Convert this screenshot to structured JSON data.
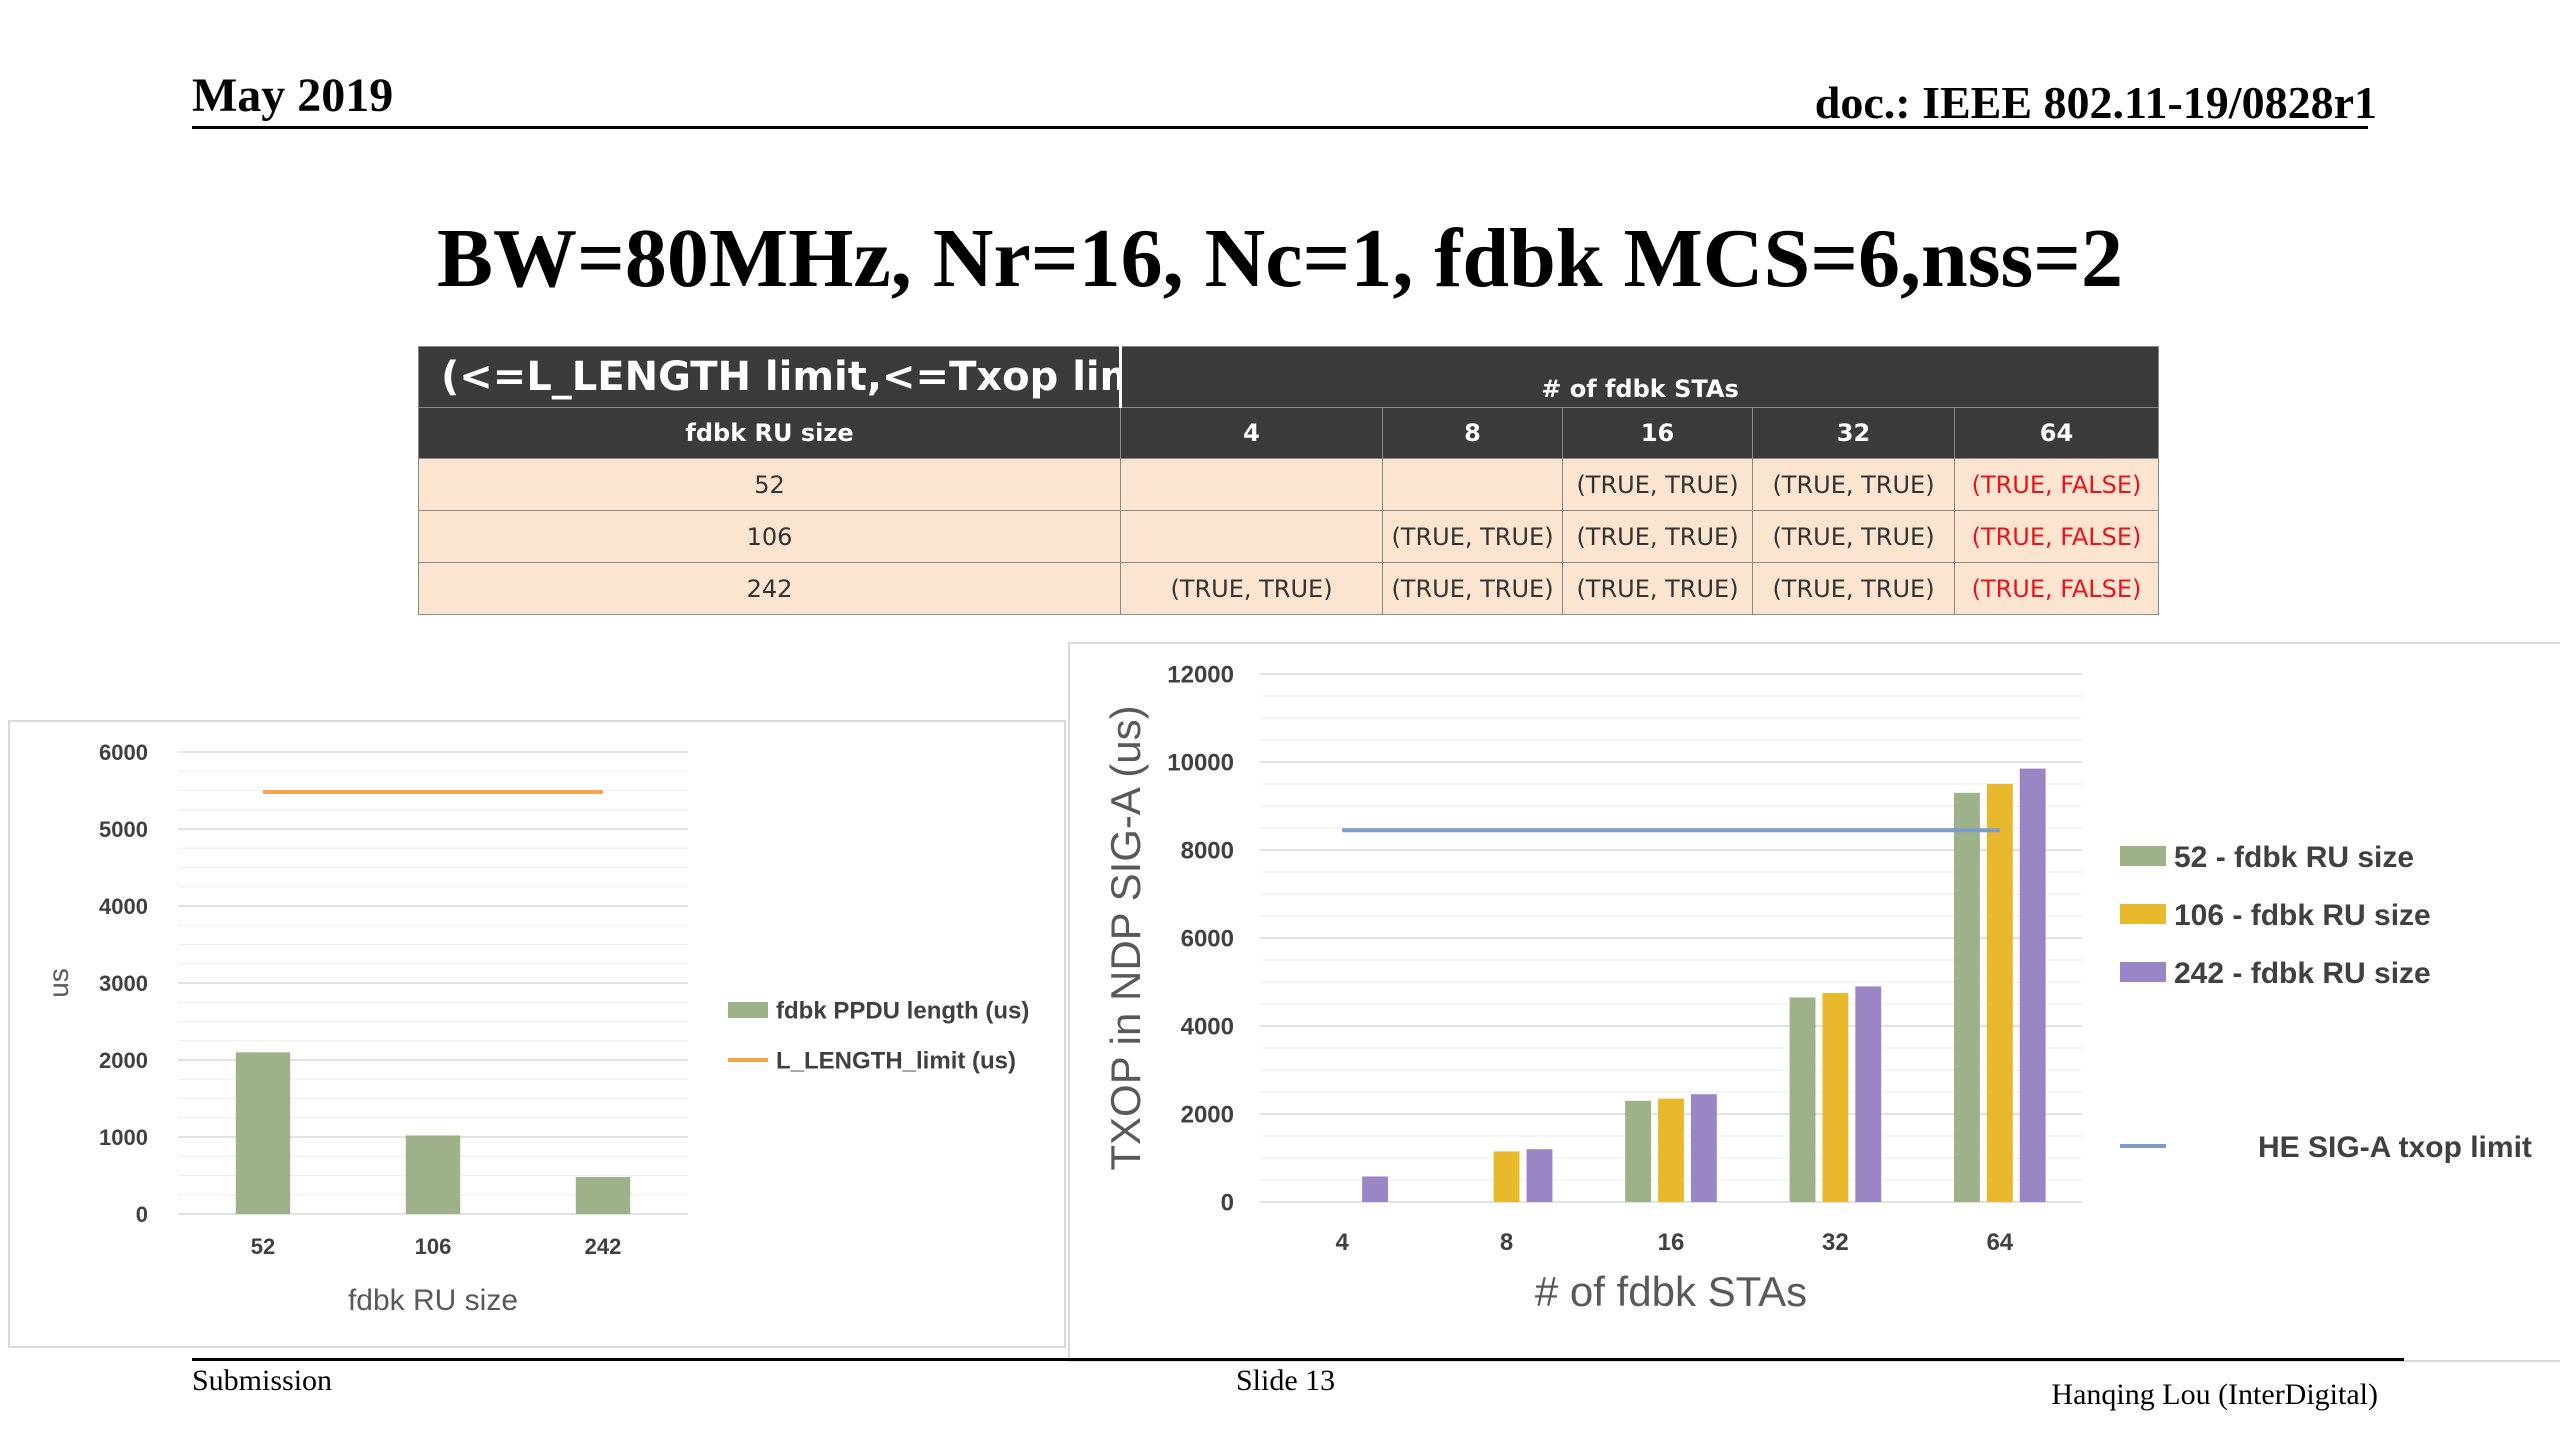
{
  "header": {
    "date": "May 2019",
    "doc": "doc.: IEEE 802.11-19/0828r1"
  },
  "title": "BW=80MHz, Nr=16, Nc=1, fdbk MCS=6,nss=2",
  "table": {
    "caption": "(<=L_LENGTH limit,<=Txop limit )",
    "group_header": "# of fdbk STAs",
    "row_header": "fdbk RU size",
    "columns": [
      "4",
      "8",
      "16",
      "32",
      "64"
    ],
    "rows": [
      {
        "label": "52",
        "cells": [
          "",
          "",
          "(TRUE, TRUE)",
          "(TRUE, TRUE)",
          "(TRUE, FALSE)"
        ]
      },
      {
        "label": "106",
        "cells": [
          "",
          "(TRUE, TRUE)",
          "(TRUE, TRUE)",
          "(TRUE, TRUE)",
          "(TRUE, FALSE)"
        ]
      },
      {
        "label": "242",
        "cells": [
          "(TRUE, TRUE)",
          "(TRUE, TRUE)",
          "(TRUE, TRUE)",
          "(TRUE, TRUE)",
          "(TRUE, FALSE)"
        ]
      }
    ],
    "false_color": "#e8141b"
  },
  "chart_data": [
    {
      "type": "bar",
      "categories": [
        "52",
        "106",
        "242"
      ],
      "series": [
        {
          "name": "fdbk PPDU length (us)",
          "kind": "bar",
          "color": "#9eb28a",
          "values": [
            2100,
            1020,
            480
          ]
        },
        {
          "name": "L_LENGTH_limit (us)",
          "kind": "line",
          "color": "#f4a44a",
          "values": [
            5480,
            5480,
            5480
          ]
        }
      ],
      "xlabel": "fdbk RU size",
      "ylabel": "us",
      "ylim": [
        0,
        6000
      ],
      "yticks": [
        0,
        1000,
        2000,
        3000,
        4000,
        5000,
        6000
      ],
      "grid": true,
      "legend_position": "right"
    },
    {
      "type": "bar",
      "categories": [
        "4",
        "8",
        "16",
        "32",
        "64"
      ],
      "series": [
        {
          "name": "52 - fdbk RU size",
          "kind": "bar",
          "color": "#9eb28a",
          "values": [
            0,
            0,
            2300,
            4650,
            9300
          ]
        },
        {
          "name": "106 - fdbk RU size",
          "kind": "bar",
          "color": "#e8b92c",
          "values": [
            0,
            1150,
            2350,
            4750,
            9500
          ]
        },
        {
          "name": "242 - fdbk RU size",
          "kind": "bar",
          "color": "#9a86c4",
          "values": [
            580,
            1200,
            2450,
            4900,
            9850
          ]
        },
        {
          "name": "HE SIG-A txop limit",
          "kind": "line",
          "color": "#7d9cc8",
          "values": [
            8450,
            8450,
            8450,
            8450,
            8450
          ]
        }
      ],
      "xlabel": "# of fdbk STAs",
      "ylabel": "TXOP in NDP SIG-A (us)",
      "ylim": [
        0,
        12000
      ],
      "yticks": [
        0,
        2000,
        4000,
        6000,
        8000,
        10000,
        12000
      ],
      "grid": true,
      "legend_position": "right"
    }
  ],
  "footer": {
    "submission": "Submission",
    "slide": "Slide 13",
    "author": "Hanqing Lou (InterDigital)"
  }
}
